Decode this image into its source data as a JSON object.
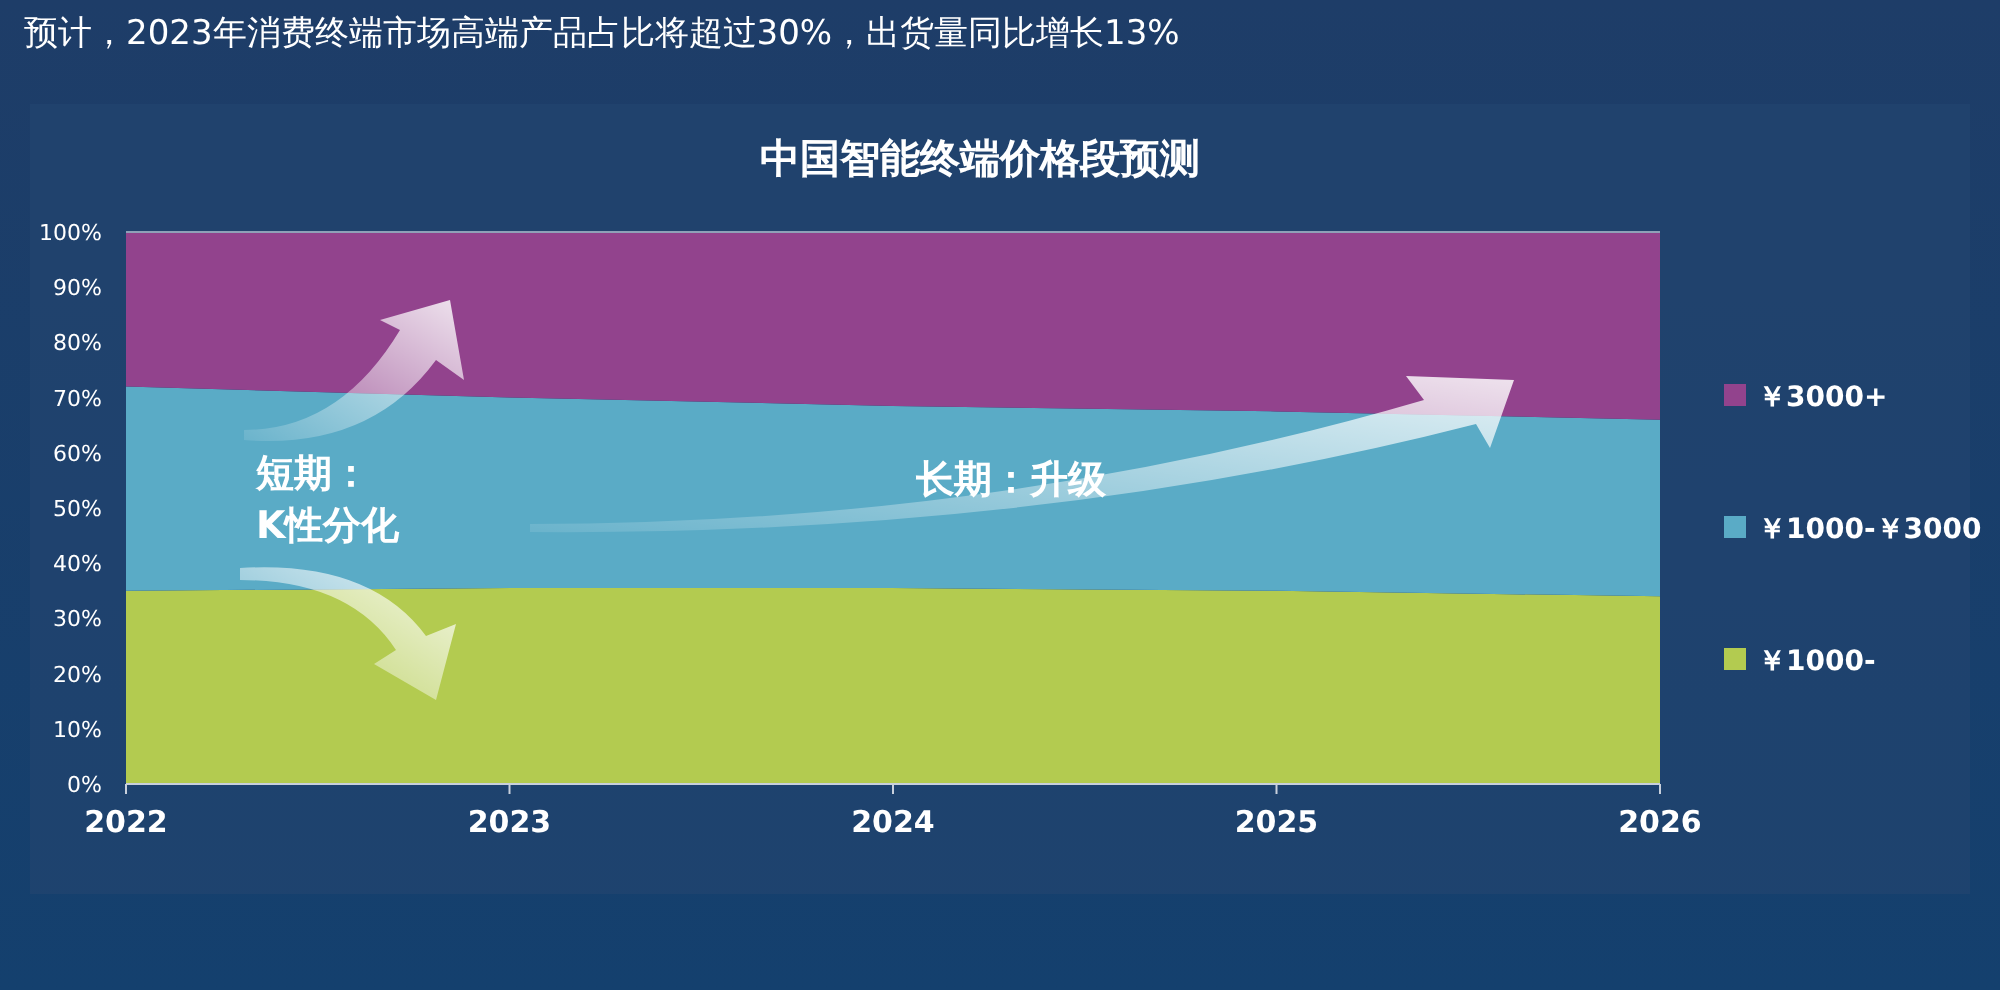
{
  "chart_data": {
    "type": "area",
    "stacked": true,
    "title": "预计，2023年消费终端市场高端产品占比将超过30%，出货量同比增长13%",
    "subtitle": "中国智能终端价格段预测",
    "categories": [
      "2022",
      "2023",
      "2024",
      "2025",
      "2026"
    ],
    "series": [
      {
        "name": "￥1000-",
        "color": "#b3cb50",
        "values": [
          35,
          35.5,
          35.5,
          35,
          34
        ]
      },
      {
        "name": "￥1000-￥3000",
        "color": "#5aabc6",
        "values": [
          37,
          34.5,
          33,
          32.5,
          32
        ]
      },
      {
        "name": "￥3000+",
        "color": "#92438d",
        "values": [
          28,
          30,
          31.5,
          32.5,
          34
        ]
      }
    ],
    "ylim": [
      0,
      100
    ],
    "yticks": [
      {
        "value": 0,
        "label": "0%"
      },
      {
        "value": 10,
        "label": "10%"
      },
      {
        "value": 20,
        "label": "20%"
      },
      {
        "value": 30,
        "label": "30%"
      },
      {
        "value": 40,
        "label": "40%"
      },
      {
        "value": 50,
        "label": "50%"
      },
      {
        "value": 60,
        "label": "60%"
      },
      {
        "value": 70,
        "label": "70%"
      },
      {
        "value": 80,
        "label": "80%"
      },
      {
        "value": 90,
        "label": "90%"
      },
      {
        "value": 100,
        "label": "100%"
      }
    ],
    "legend": "right",
    "annotations": [
      "短期：\nK性分化",
      "长期：升级"
    ]
  }
}
